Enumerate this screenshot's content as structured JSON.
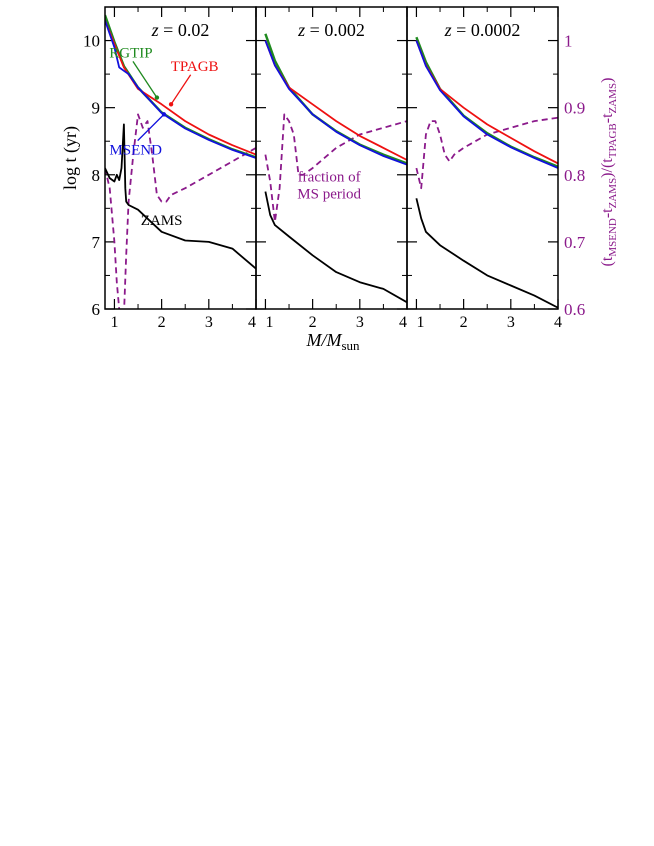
{
  "chart_data": {
    "type": "line",
    "xlabel": "M/M",
    "xlabel_sub": "sun",
    "ylabel_left": "log t (yr)",
    "ylabel_right": {
      "open": "(t",
      "sub1": "MSEND",
      "mid1": "-t",
      "sub2": "ZAMS",
      "mid2": ")/(t",
      "sub3": "TPAGB",
      "mid3": "-t",
      "sub4": "ZAMS",
      "close": ")"
    },
    "ylim_left": [
      6,
      10.5
    ],
    "ylim_right": [
      0.6,
      1.05
    ],
    "yticks_left": [
      "6",
      "7",
      "8",
      "9",
      "10"
    ],
    "yticks_right": [
      "0.6",
      "0.7",
      "0.8",
      "0.9",
      "1"
    ],
    "xlim": [
      0.8,
      4
    ],
    "xtick_labels": [
      "1",
      "2",
      "3",
      "4"
    ],
    "colors": {
      "RGTIP": "#1f8a1f",
      "TPAGB": "#ee1111",
      "MSEND": "#1111dd",
      "ZAMS": "#000000",
      "fraction": "#8b1a8b",
      "teal": "#1f6f6f"
    },
    "panels": [
      {
        "title_z": "z",
        "title_value": " = 0.02",
        "series": [
          {
            "name": "TPAGB",
            "axis": "left",
            "x": [
              0.8,
              1.0,
              1.2,
              1.5,
              2.0,
              2.5,
              3.0,
              3.5,
              4.0
            ],
            "y": [
              10.3,
              9.95,
              9.6,
              9.28,
              9.05,
              8.8,
              8.6,
              8.44,
              8.3
            ]
          },
          {
            "name": "RGTIP",
            "axis": "left",
            "x": [
              0.8,
              1.0,
              1.2,
              1.5,
              2.0,
              2.5,
              3.0,
              3.5,
              4.0
            ],
            "y": [
              10.38,
              9.98,
              9.62,
              9.3,
              8.93,
              8.7,
              8.53,
              8.38,
              8.26
            ]
          },
          {
            "name": "MSEND",
            "axis": "left",
            "x": [
              0.8,
              1.0,
              1.1,
              1.2,
              1.3,
              1.5,
              2.0,
              2.5,
              3.0,
              3.5,
              4.0
            ],
            "y": [
              10.3,
              9.9,
              9.6,
              9.55,
              9.5,
              9.3,
              8.92,
              8.69,
              8.52,
              8.37,
              8.25
            ]
          },
          {
            "name": "ZAMS",
            "axis": "left",
            "x": [
              0.8,
              0.9,
              1.0,
              1.05,
              1.1,
              1.15,
              1.2,
              1.23,
              1.25,
              1.3,
              1.5,
              2.0,
              2.5,
              3.0,
              3.5,
              4.0
            ],
            "y": [
              8.1,
              7.95,
              7.9,
              8.0,
              7.92,
              8.1,
              8.75,
              7.8,
              7.6,
              7.55,
              7.48,
              7.15,
              7.02,
              7.0,
              6.9,
              6.6
            ]
          },
          {
            "name": "fraction",
            "axis": "right",
            "x": [
              0.8,
              0.9,
              1.0,
              1.05,
              1.1,
              1.15,
              1.2,
              1.25,
              1.3,
              1.4,
              1.5,
              1.6,
              1.7,
              1.8,
              1.9,
              2.0,
              2.1,
              2.2,
              2.5,
              3.0,
              3.5,
              4.0
            ],
            "y": [
              0.81,
              0.78,
              0.7,
              0.64,
              0.6,
              0.56,
              0.59,
              0.68,
              0.76,
              0.83,
              0.89,
              0.87,
              0.88,
              0.83,
              0.77,
              0.76,
              0.76,
              0.77,
              0.78,
              0.8,
              0.82,
              0.84
            ]
          }
        ],
        "annotations": [
          {
            "text": "RGTIP",
            "series": "RGTIP"
          },
          {
            "text": "TPAGB",
            "series": "TPAGB"
          },
          {
            "text": "MSEND",
            "series": "MSEND"
          },
          {
            "text": "ZAMS",
            "series": "ZAMS"
          }
        ]
      },
      {
        "title_z": "z",
        "title_value": " = 0.002",
        "series": [
          {
            "name": "TPAGB",
            "axis": "left",
            "x": [
              1.0,
              1.2,
              1.5,
              2.0,
              2.5,
              3.0,
              3.5,
              4.0
            ],
            "y": [
              10.0,
              9.63,
              9.3,
              9.05,
              8.8,
              8.58,
              8.4,
              8.22
            ]
          },
          {
            "name": "RGTIP",
            "axis": "left",
            "x": [
              1.0,
              1.2,
              1.5,
              2.0,
              2.5,
              3.0,
              3.5,
              4.0
            ],
            "y": [
              10.1,
              9.7,
              9.3,
              8.9,
              8.65,
              8.45,
              8.3,
              8.17
            ]
          },
          {
            "name": "MSEND",
            "axis": "left",
            "x": [
              1.0,
              1.2,
              1.5,
              2.0,
              2.5,
              3.0,
              3.5,
              4.0
            ],
            "y": [
              10.0,
              9.63,
              9.28,
              8.9,
              8.64,
              8.44,
              8.28,
              8.15
            ]
          },
          {
            "name": "ZAMS",
            "axis": "left",
            "x": [
              1.0,
              1.1,
              1.2,
              1.5,
              2.0,
              2.5,
              3.0,
              3.5,
              4.0
            ],
            "y": [
              7.75,
              7.4,
              7.25,
              7.08,
              6.8,
              6.55,
              6.4,
              6.3,
              6.1
            ]
          },
          {
            "name": "fraction",
            "axis": "right",
            "x": [
              1.0,
              1.1,
              1.2,
              1.3,
              1.4,
              1.5,
              1.6,
              1.7,
              1.8,
              2.0,
              2.5,
              3.0,
              3.5,
              4.0
            ],
            "y": [
              0.83,
              0.79,
              0.73,
              0.78,
              0.89,
              0.88,
              0.86,
              0.8,
              0.8,
              0.81,
              0.84,
              0.86,
              0.87,
              0.88
            ]
          }
        ],
        "annotations": [
          {
            "text": "fraction of",
            "series": "fraction"
          },
          {
            "text": "MS period",
            "series": "fraction"
          }
        ]
      },
      {
        "title_z": "z",
        "title_value": " = 0.0002",
        "series": [
          {
            "name": "TPAGB",
            "axis": "left",
            "x": [
              1.0,
              1.2,
              1.5,
              2.0,
              2.5,
              3.0,
              3.5,
              4.0
            ],
            "y": [
              10.0,
              9.63,
              9.28,
              9.0,
              8.75,
              8.55,
              8.35,
              8.17
            ]
          },
          {
            "name": "RGTIP",
            "axis": "left",
            "x": [
              1.0,
              1.2,
              1.5,
              2.0,
              2.5,
              3.0,
              3.5,
              4.0
            ],
            "y": [
              10.05,
              9.68,
              9.28,
              8.88,
              8.62,
              8.42,
              8.26,
              8.12
            ]
          },
          {
            "name": "MSEND",
            "axis": "left",
            "x": [
              1.0,
              1.2,
              1.5,
              2.0,
              2.5,
              3.0,
              3.5,
              4.0
            ],
            "y": [
              10.0,
              9.62,
              9.26,
              8.87,
              8.6,
              8.41,
              8.25,
              8.1
            ]
          },
          {
            "name": "ZAMS",
            "axis": "left",
            "x": [
              1.0,
              1.1,
              1.2,
              1.5,
              2.0,
              2.5,
              3.0,
              3.5,
              4.0
            ],
            "y": [
              7.65,
              7.35,
              7.15,
              6.95,
              6.72,
              6.5,
              6.35,
              6.2,
              6.02
            ]
          },
          {
            "name": "fraction",
            "axis": "right",
            "x": [
              1.0,
              1.1,
              1.2,
              1.3,
              1.4,
              1.5,
              1.6,
              1.7,
              1.8,
              2.0,
              2.5,
              3.0,
              3.5,
              4.0
            ],
            "y": [
              0.81,
              0.78,
              0.86,
              0.88,
              0.88,
              0.86,
              0.83,
              0.82,
              0.83,
              0.84,
              0.86,
              0.87,
              0.88,
              0.885
            ]
          }
        ],
        "annotations": []
      }
    ]
  }
}
